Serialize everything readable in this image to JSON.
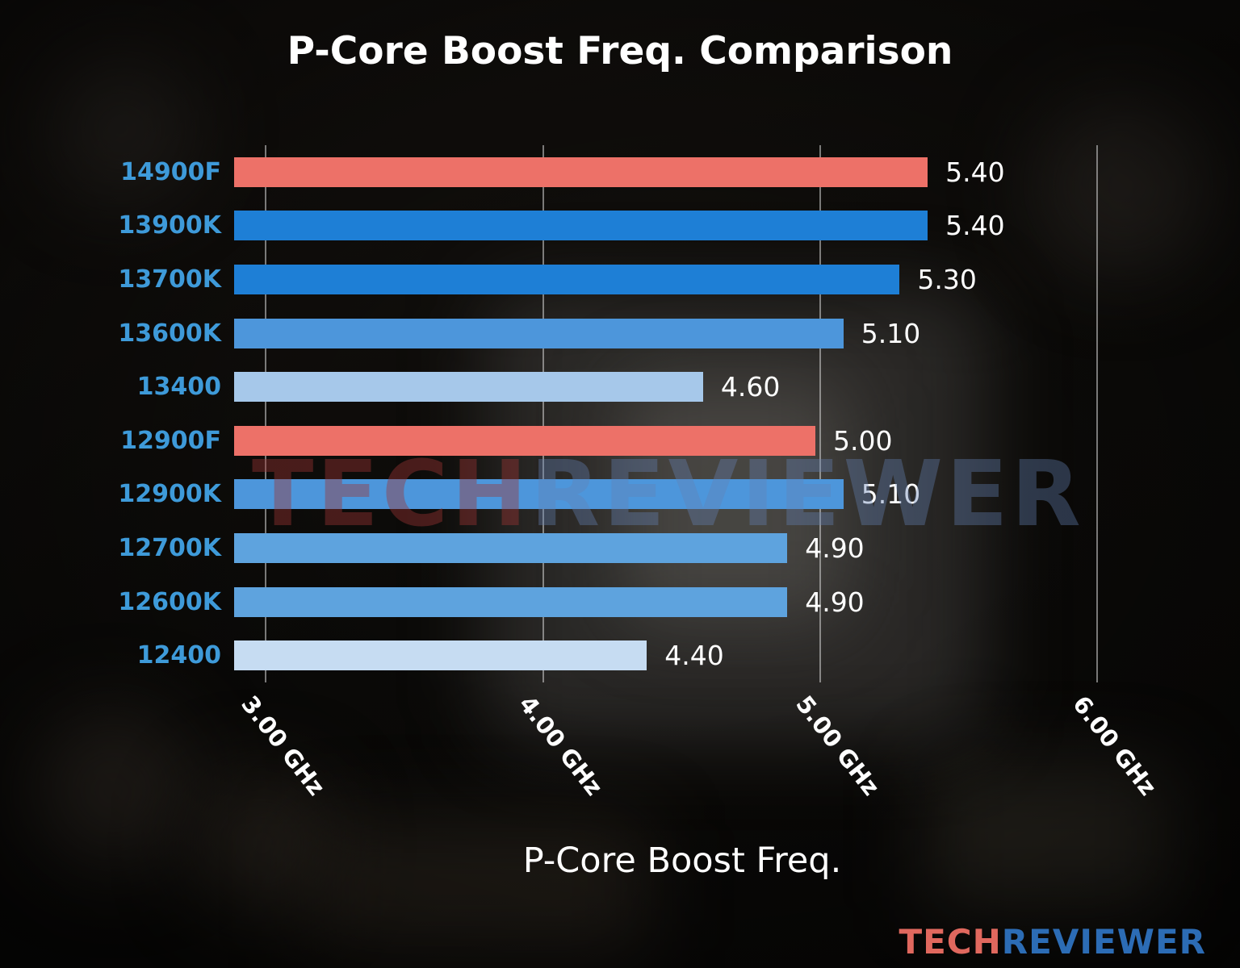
{
  "chart_data": {
    "type": "bar",
    "orientation": "horizontal",
    "title": "P-Core Boost Freq. Comparison",
    "xlabel": "P-Core Boost Freq.",
    "categories": [
      "14900F",
      "13900K",
      "13700K",
      "13600K",
      "13400",
      "12900F",
      "12900K",
      "12700K",
      "12600K",
      "12400"
    ],
    "values": [
      5.4,
      5.4,
      5.3,
      5.1,
      4.6,
      5.0,
      5.1,
      4.9,
      4.9,
      4.4
    ],
    "value_labels": [
      "5.40",
      "5.40",
      "5.30",
      "5.10",
      "4.60",
      "5.00",
      "5.10",
      "4.90",
      "4.90",
      "4.40"
    ],
    "bar_colors": [
      "#ED7168",
      "#1E7FD6",
      "#1E7FD6",
      "#4D96DB",
      "#A6C8EA",
      "#ED7168",
      "#4D96DB",
      "#5EA3DE",
      "#5EA3DE",
      "#C6DCF2"
    ],
    "x_ticks": [
      "3.00 GHz",
      "4.00 GHz",
      "5.00 GHz",
      "6.00 GHz"
    ],
    "x_tick_values": [
      3,
      4,
      5,
      6
    ],
    "xlim": [
      2.93,
      6.38
    ],
    "grid": true,
    "legend_position": "none"
  },
  "watermark": {
    "part1": "TECH",
    "part2": "REVIEWER"
  },
  "logo": {
    "part1": "TECH",
    "part2": "REVIEWER"
  },
  "colors": {
    "title": "#FFFFFF",
    "category_label": "#3E9AD9",
    "value_label": "#FFFFFF",
    "tick_label": "#FFFFFF",
    "gridline": "rgba(213,213,213,0.55)",
    "watermark_tech": "rgba(158,52,52,0.42)",
    "watermark_reviewer": "rgba(100,130,180,0.38)",
    "logo_tech": "#E0685E",
    "logo_reviewer": "#2C6CB5"
  }
}
